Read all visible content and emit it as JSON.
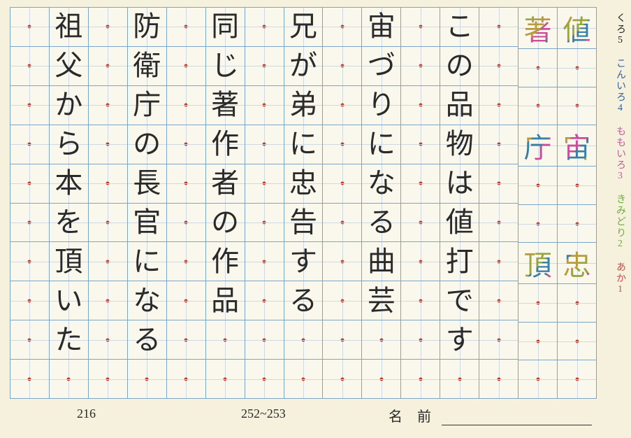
{
  "grid": {
    "cols": 15,
    "rows": 10,
    "border_color": "#7aa6c9",
    "guide_color": "#cfd9e3",
    "dot_color": "#c0392b",
    "bg": "#faf8ec",
    "page_bg": "#f5f1dd"
  },
  "example_kanji_col1": [
    {
      "char": "値",
      "row": 0,
      "colors": [
        "#b89b3e",
        "#9aa63d",
        "#3a7fa6",
        "#c94f9b"
      ]
    },
    {
      "char": "宙",
      "row": 3,
      "colors": [
        "#b89b3e",
        "#c94f9b",
        "#3a7fa6",
        "#9aa63d"
      ]
    },
    {
      "char": "忠",
      "row": 6,
      "colors": [
        "#3a7fa6",
        "#b89b3e",
        "#9aa63d",
        "#c94f9b"
      ]
    }
  ],
  "example_kanji_col2": [
    {
      "char": "著",
      "row": 0,
      "colors": [
        "#9aa63d",
        "#b89b3e",
        "#c94f9b",
        "#3a7fa6"
      ]
    },
    {
      "char": "庁",
      "row": 3,
      "colors": [
        "#b89b3e",
        "#3a7fa6",
        "#c94f9b",
        "#9aa63d"
      ]
    },
    {
      "char": "頂",
      "row": 6,
      "colors": [
        "#b89b3e",
        "#9aa63d",
        "#3a7fa6",
        "#c94f9b"
      ]
    }
  ],
  "blank_dot_cols": [
    2,
    4,
    6,
    8,
    10,
    12,
    14
  ],
  "phrases": [
    {
      "col": 3,
      "text": "この品物は値打です"
    },
    {
      "col": 5,
      "text": "宙づりになる曲芸"
    },
    {
      "col": 7,
      "text": "兄が弟に忠告する"
    },
    {
      "col": 9,
      "text": "同じ著作者の作品"
    },
    {
      "col": 11,
      "text": "防衛庁の長官になる"
    },
    {
      "col": 13,
      "text": "祖父から本を頂いた"
    }
  ],
  "legend": [
    {
      "text": "あか1",
      "color": "#c94f4f"
    },
    {
      "text": "きみどり2",
      "color": "#6fae3a"
    },
    {
      "text": "ももいろ3",
      "color": "#c25aa0"
    },
    {
      "text": "こんいろ4",
      "color": "#2e5f9e"
    },
    {
      "text": "くろ5",
      "color": "#222222"
    }
  ],
  "footer": {
    "page_left": "216",
    "page_mid": "252~253",
    "name_label": "名 前"
  }
}
